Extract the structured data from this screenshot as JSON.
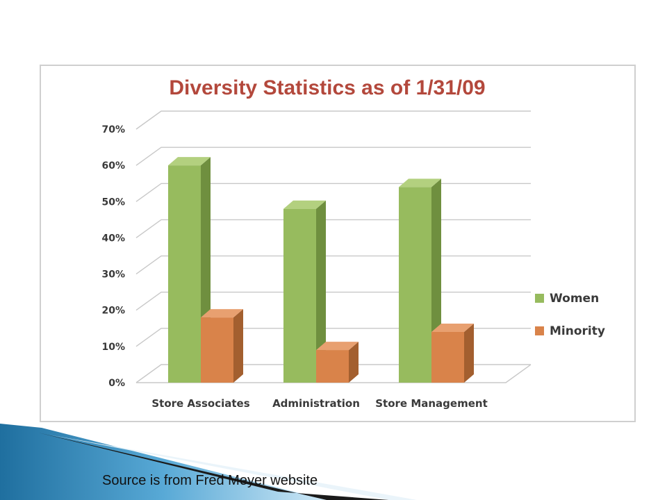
{
  "slide": {
    "source_note": "Source is from Fred Meyer website"
  },
  "colors": {
    "women_front": "#97bb5e",
    "women_side": "#6f8f3f",
    "women_top": "#b3d07f",
    "minority_front": "#d9834a",
    "minority_side": "#a35f2f",
    "minority_top": "#e8a070",
    "title": "#b3483c",
    "gridline": "#c8c8c8",
    "decor_blue": "#3a8fc0"
  },
  "chart_data": {
    "type": "bar",
    "title": "Diversity Statistics as of 1/31/09",
    "categories": [
      "Store Associates",
      "Administration",
      "Store Management"
    ],
    "series": [
      {
        "name": "Women",
        "values": [
          60,
          48,
          54
        ]
      },
      {
        "name": "Minority",
        "values": [
          18,
          9,
          14
        ]
      }
    ],
    "ylim": [
      0,
      70
    ],
    "yticks": [
      "0%",
      "10%",
      "20%",
      "30%",
      "40%",
      "50%",
      "60%",
      "70%"
    ],
    "xlabel": "",
    "ylabel": "",
    "grid": true,
    "legend_position": "right",
    "style": "3d-clustered-column"
  }
}
